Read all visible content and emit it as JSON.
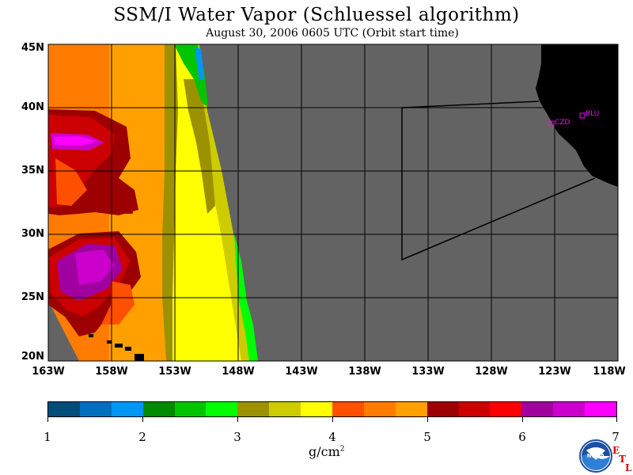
{
  "title": "SSM/I Water Vapor (Schluessel algorithm)",
  "subtitle": "August 30, 2006  0605 UTC  (Orbit start time)",
  "lat_labels": [
    "45N",
    "40N",
    "35N",
    "30N",
    "25N",
    "20N"
  ],
  "lon_labels": [
    "163W",
    "158W",
    "153W",
    "148W",
    "143W",
    "138W",
    "133W",
    "128W",
    "123W",
    "118W"
  ],
  "stations": [
    "CZD",
    "BLU"
  ],
  "colorbar": {
    "ticks": [
      "1",
      "2",
      "3",
      "4",
      "5",
      "6",
      "7"
    ],
    "units_base": "g/cm",
    "units_sup": "2",
    "colors": [
      "#004c7a",
      "#0070bd",
      "#0096f5",
      "#008a00",
      "#00c400",
      "#00ff00",
      "#9c9200",
      "#cccc00",
      "#ffff00",
      "#ff5000",
      "#ff7c00",
      "#ffa000",
      "#9c0000",
      "#cc0000",
      "#ff0000",
      "#a000a0",
      "#cc00cc",
      "#ff00ff"
    ]
  },
  "logo_text": "NOAA",
  "etl": [
    "E",
    "T",
    "L"
  ],
  "colors": {
    "land": "#000000",
    "no_data": "#636363",
    "grid": "#000000",
    "station": "#ff00ff"
  }
}
